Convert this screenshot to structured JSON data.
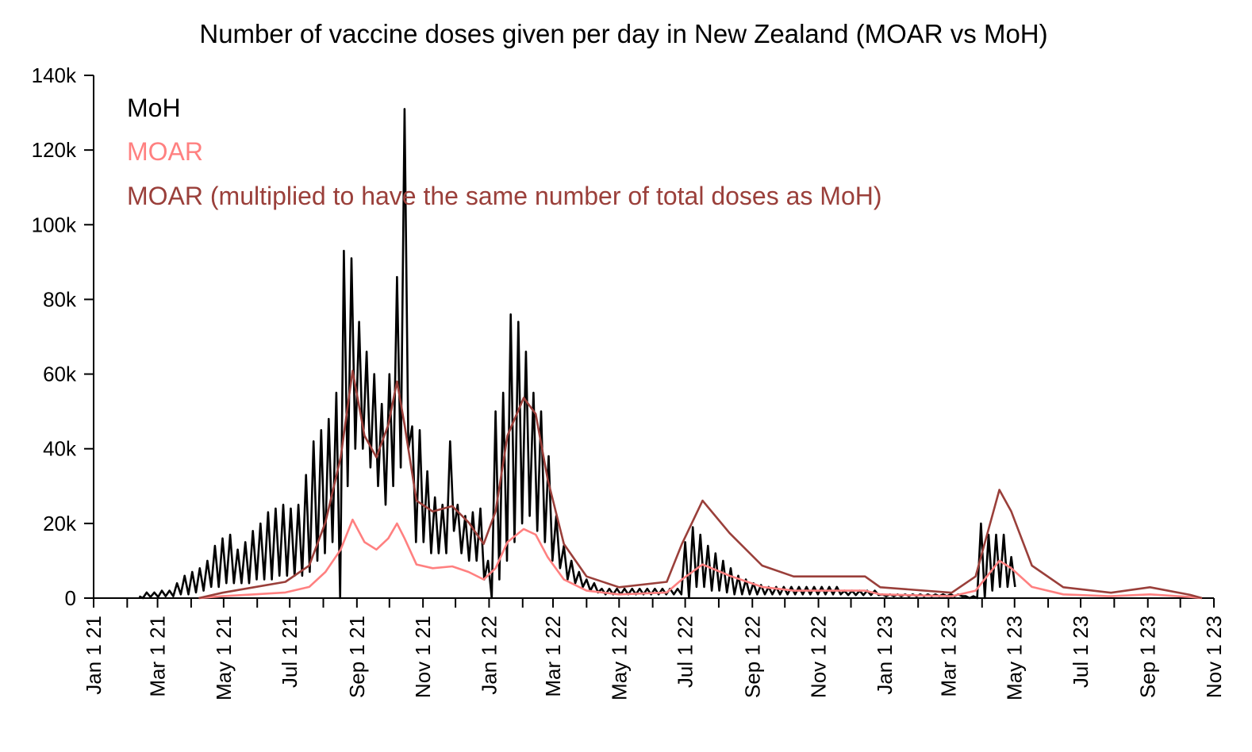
{
  "chart_data": {
    "type": "line",
    "title": "Number of vaccine doses given per day in New Zealand (MOAR vs MoH)",
    "xlabel": "",
    "ylabel": "",
    "x_unit": "days since Jan 1 2021",
    "xlim_days": [
      0,
      1034
    ],
    "ylim": [
      0,
      140
    ],
    "y_unit": "thousand doses",
    "y_ticks": [
      0,
      20,
      40,
      60,
      80,
      100,
      120,
      140
    ],
    "y_tick_labels": [
      "0",
      "20k",
      "40k",
      "60k",
      "80k",
      "100k",
      "120k",
      "140k"
    ],
    "x_ticks": [
      {
        "day": 0,
        "label": "Jan 1 21"
      },
      {
        "day": 59,
        "label": "Mar 1 21"
      },
      {
        "day": 120,
        "label": "May 1 21"
      },
      {
        "day": 181,
        "label": "Jul 1 21"
      },
      {
        "day": 243,
        "label": "Sep 1 21"
      },
      {
        "day": 304,
        "label": "Nov 1 21"
      },
      {
        "day": 365,
        "label": "Jan 1 22"
      },
      {
        "day": 424,
        "label": "Mar 1 22"
      },
      {
        "day": 485,
        "label": "May 1 22"
      },
      {
        "day": 546,
        "label": "Jul 1 22"
      },
      {
        "day": 608,
        "label": "Sep 1 22"
      },
      {
        "day": 669,
        "label": "Nov 1 22"
      },
      {
        "day": 730,
        "label": "Jan 1 23"
      },
      {
        "day": 789,
        "label": "Mar 1 23"
      },
      {
        "day": 850,
        "label": "May 1 23"
      },
      {
        "day": 911,
        "label": "Jul 1 23"
      },
      {
        "day": 973,
        "label": "Sep 1 23"
      },
      {
        "day": 1034,
        "label": "Nov 1 23"
      }
    ],
    "minor_tick_days": [
      31,
      90,
      151,
      212,
      273,
      334,
      396,
      455,
      516,
      577,
      638,
      699,
      761,
      820,
      881,
      942,
      1003
    ],
    "legend_placement": "top-left",
    "grid": false,
    "series": [
      {
        "name": "MoH",
        "color": "#000000",
        "weekly_start_day": 42,
        "step_days": 7,
        "weekly_high": [
          0.5,
          1.5,
          1.5,
          2,
          2,
          4,
          6,
          7,
          8,
          10,
          14,
          16,
          17,
          13,
          15,
          18,
          20,
          23,
          24,
          25,
          24,
          25,
          33,
          42,
          45,
          48,
          55,
          93,
          91,
          74,
          66,
          60,
          52,
          60,
          86,
          131,
          46,
          45,
          34,
          27,
          25,
          42,
          25,
          22,
          23,
          24,
          10,
          50,
          55,
          76,
          74,
          66,
          55,
          50,
          38,
          22,
          14,
          10,
          7,
          5,
          4,
          2.5,
          2.5,
          2.5,
          2.5,
          2.5,
          2.5,
          2.5,
          2.5,
          2.5,
          2.5,
          2.5,
          15,
          19,
          17,
          14,
          12,
          10,
          8,
          6,
          5,
          4,
          3.5,
          3,
          3,
          3,
          3,
          3,
          3,
          3,
          3,
          3,
          3,
          2,
          2,
          2,
          2,
          2,
          1,
          1,
          1,
          1,
          1,
          1,
          1,
          1,
          1,
          1,
          1,
          0.5,
          0.5,
          20,
          17,
          17,
          17,
          11
        ],
        "weekly_low": [
          0,
          0.3,
          0.3,
          0.5,
          0.5,
          1,
          1,
          1.5,
          2,
          3,
          3,
          4,
          4,
          4,
          4,
          5,
          5,
          5,
          6,
          6,
          6,
          6,
          7,
          10,
          12,
          15,
          0,
          30,
          40,
          40,
          35,
          30,
          25,
          30,
          35,
          40,
          15,
          15,
          12,
          12,
          12,
          18,
          12,
          10,
          10,
          5,
          0,
          5,
          10,
          15,
          20,
          22,
          18,
          15,
          10,
          8,
          5,
          4,
          3,
          2,
          1.5,
          1,
          1,
          1,
          1,
          1,
          1,
          1,
          1,
          1,
          1,
          1,
          0,
          3,
          3,
          2,
          2,
          1.5,
          1,
          1,
          1,
          1,
          1,
          1,
          1,
          1,
          1,
          1,
          1,
          1,
          1,
          1,
          1,
          0.8,
          0.8,
          0.8,
          0.8,
          0.8,
          0.5,
          0.5,
          0.5,
          0.5,
          0.5,
          0.5,
          0.5,
          0.5,
          0.5,
          0.5,
          0.5,
          0,
          0,
          0,
          2,
          3,
          3,
          3
        ]
      },
      {
        "name": "MOAR",
        "color": "#ff8080",
        "points": [
          [
            97,
            0
          ],
          [
            119,
            0.5
          ],
          [
            148,
            1
          ],
          [
            177,
            1.5
          ],
          [
            199,
            3
          ],
          [
            214,
            7
          ],
          [
            228,
            13
          ],
          [
            239,
            21
          ],
          [
            250,
            15
          ],
          [
            261,
            13
          ],
          [
            272,
            16
          ],
          [
            280,
            20
          ],
          [
            287,
            16
          ],
          [
            298,
            9
          ],
          [
            313,
            8
          ],
          [
            331,
            8.5
          ],
          [
            346,
            7
          ],
          [
            360,
            5
          ],
          [
            371,
            8
          ],
          [
            382,
            15
          ],
          [
            397,
            18.5
          ],
          [
            408,
            17
          ],
          [
            419,
            11
          ],
          [
            434,
            5
          ],
          [
            455,
            2
          ],
          [
            485,
            1
          ],
          [
            529,
            1.5
          ],
          [
            543,
            5
          ],
          [
            562,
            9
          ],
          [
            587,
            6
          ],
          [
            617,
            3
          ],
          [
            646,
            2
          ],
          [
            712,
            2
          ],
          [
            726,
            1
          ],
          [
            792,
            0.5
          ],
          [
            814,
            2
          ],
          [
            836,
            10
          ],
          [
            847,
            8
          ],
          [
            866,
            3
          ],
          [
            895,
            1
          ],
          [
            939,
            0.5
          ],
          [
            975,
            1
          ],
          [
            1012,
            0.3
          ],
          [
            1023,
            0
          ]
        ]
      },
      {
        "name": "MOAR (multiplied to have the same number of total doses as MoH)",
        "color": "#9a3f3a",
        "multiplier_of_MOAR": 2.9
      }
    ]
  }
}
